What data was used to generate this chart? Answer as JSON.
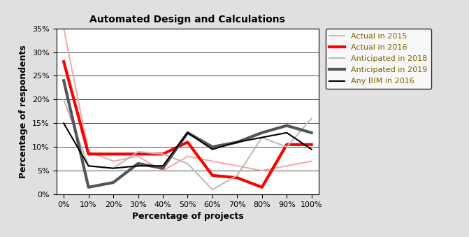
{
  "title": "Automated Design and Calculations",
  "xlabel": "Percentage of projects",
  "ylabel": "Percentage of respondents",
  "x_labels": [
    "0%",
    "10%",
    "20%",
    "30%",
    "40%",
    "50%",
    "60%",
    "70%",
    "80%",
    "90%",
    "100%"
  ],
  "x_values": [
    0,
    1,
    2,
    3,
    4,
    5,
    6,
    7,
    8,
    9,
    10
  ],
  "ylim": [
    0,
    0.35
  ],
  "yticks": [
    0.0,
    0.05,
    0.1,
    0.15,
    0.2,
    0.25,
    0.3,
    0.35
  ],
  "ytick_labels": [
    "0%",
    "5%",
    "10%",
    "15%",
    "20%",
    "25%",
    "30%",
    "35%"
  ],
  "series": [
    {
      "label": "Actual in 2015",
      "color": "#F4AAAA",
      "linewidth": 1.5,
      "values": [
        0.35,
        0.09,
        0.07,
        0.08,
        0.05,
        0.08,
        0.07,
        0.06,
        0.05,
        0.06,
        0.07
      ]
    },
    {
      "label": "Actual in 2016",
      "color": "#FF0000",
      "linewidth": 3.0,
      "values": [
        0.28,
        0.085,
        0.085,
        0.085,
        0.085,
        0.11,
        0.04,
        0.035,
        0.015,
        0.105,
        0.105
      ]
    },
    {
      "label": "Anticipated in 2018",
      "color": "#BBBBBB",
      "linewidth": 1.5,
      "values": [
        0.2,
        0.06,
        0.055,
        0.09,
        0.085,
        0.065,
        0.01,
        0.04,
        0.12,
        0.1,
        0.16
      ]
    },
    {
      "label": "Anticipated in 2019",
      "color": "#555555",
      "linewidth": 3.0,
      "values": [
        0.24,
        0.015,
        0.025,
        0.065,
        0.055,
        0.13,
        0.1,
        0.11,
        0.13,
        0.145,
        0.13
      ]
    },
    {
      "label": "Any BIM in 2016",
      "color": "#000000",
      "linewidth": 1.5,
      "values": [
        0.15,
        0.06,
        0.055,
        0.06,
        0.06,
        0.13,
        0.095,
        0.11,
        0.12,
        0.13,
        0.095
      ]
    }
  ],
  "background_color": "#E0E0E0",
  "plot_bg_color": "#FFFFFF",
  "title_fontsize": 10,
  "axis_label_fontsize": 9,
  "tick_fontsize": 8,
  "legend_fontsize": 8,
  "legend_text_color": "#806000"
}
